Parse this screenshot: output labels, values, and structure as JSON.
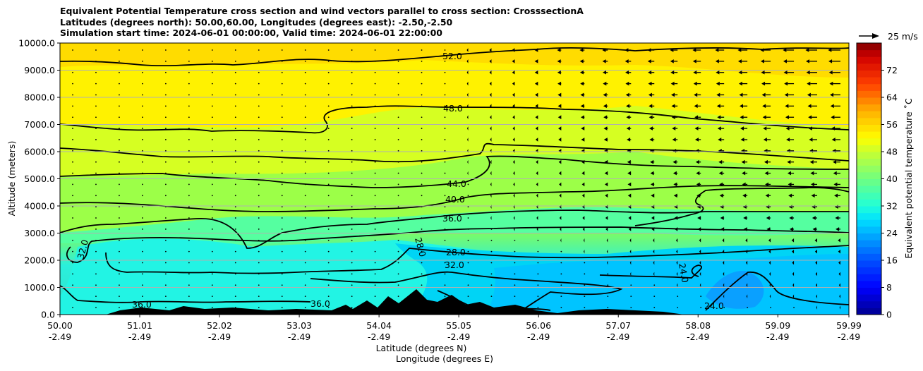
{
  "title_lines": [
    "Equivalent Potential Temperature cross section and wind vectors parallel to cross section: CrosssectionA",
    "Latitudes (degrees north): 50.00,60.00, Longitudes (degrees east): -2.50,-2.50",
    "Simulation start time: 2024-06-01 00:00:00, Valid time: 2024-06-01 22:00:00"
  ],
  "chart_data": {
    "type": "heatmap",
    "subtype": "filled contour cross section with contour lines and wind vectors",
    "xlabel": "Latitude (degrees N)",
    "xlabel2": "Longitude (degrees E)",
    "ylabel": "Altitude (meters)",
    "x_ticks": [
      {
        "lat": "50.00",
        "lon": "-2.49"
      },
      {
        "lat": "51.01",
        "lon": "-2.49"
      },
      {
        "lat": "52.02",
        "lon": "-2.49"
      },
      {
        "lat": "53.03",
        "lon": "-2.49"
      },
      {
        "lat": "54.04",
        "lon": "-2.49"
      },
      {
        "lat": "55.05",
        "lon": "-2.49"
      },
      {
        "lat": "56.06",
        "lon": "-2.49"
      },
      {
        "lat": "57.07",
        "lon": "-2.49"
      },
      {
        "lat": "58.08",
        "lon": "-2.49"
      },
      {
        "lat": "59.09",
        "lon": "-2.49"
      },
      {
        "lat": "59.99",
        "lon": "-2.49"
      }
    ],
    "xlim": [
      50.0,
      59.99
    ],
    "y_ticks": [
      "0.0",
      "1000.0",
      "2000.0",
      "3000.0",
      "4000.0",
      "5000.0",
      "6000.0",
      "7000.0",
      "8000.0",
      "9000.0",
      "10000.0"
    ],
    "ylim": [
      0,
      10000
    ],
    "grid": "horizontal",
    "colorbar": {
      "label": "Equivalent potential temperature ˚C",
      "ticks": [
        "0",
        "8",
        "16",
        "24",
        "32",
        "40",
        "48",
        "56",
        "64",
        "72"
      ],
      "range": [
        0,
        80
      ]
    },
    "quiver_key": "25 m/s",
    "contour_levels": [
      {
        "label": "52.0",
        "altitude": 9300
      },
      {
        "label": "48.0",
        "altitude": 7100
      },
      {
        "label": "44.0",
        "altitude": 5000
      },
      {
        "label": "40.0",
        "altitude": 4100
      },
      {
        "label": "36.0",
        "altitude": 3400
      },
      {
        "label": "32.0",
        "altitude": 2600
      },
      {
        "label": "28.0",
        "altitude": 2100
      },
      {
        "label": "24.0",
        "altitude": 1400
      }
    ],
    "wind_summary": "weak near-zero vectors in south; increasingly strong vectors pointing toward the south (leftward) in the north, strongest above 6000 m north of 58.5"
  }
}
